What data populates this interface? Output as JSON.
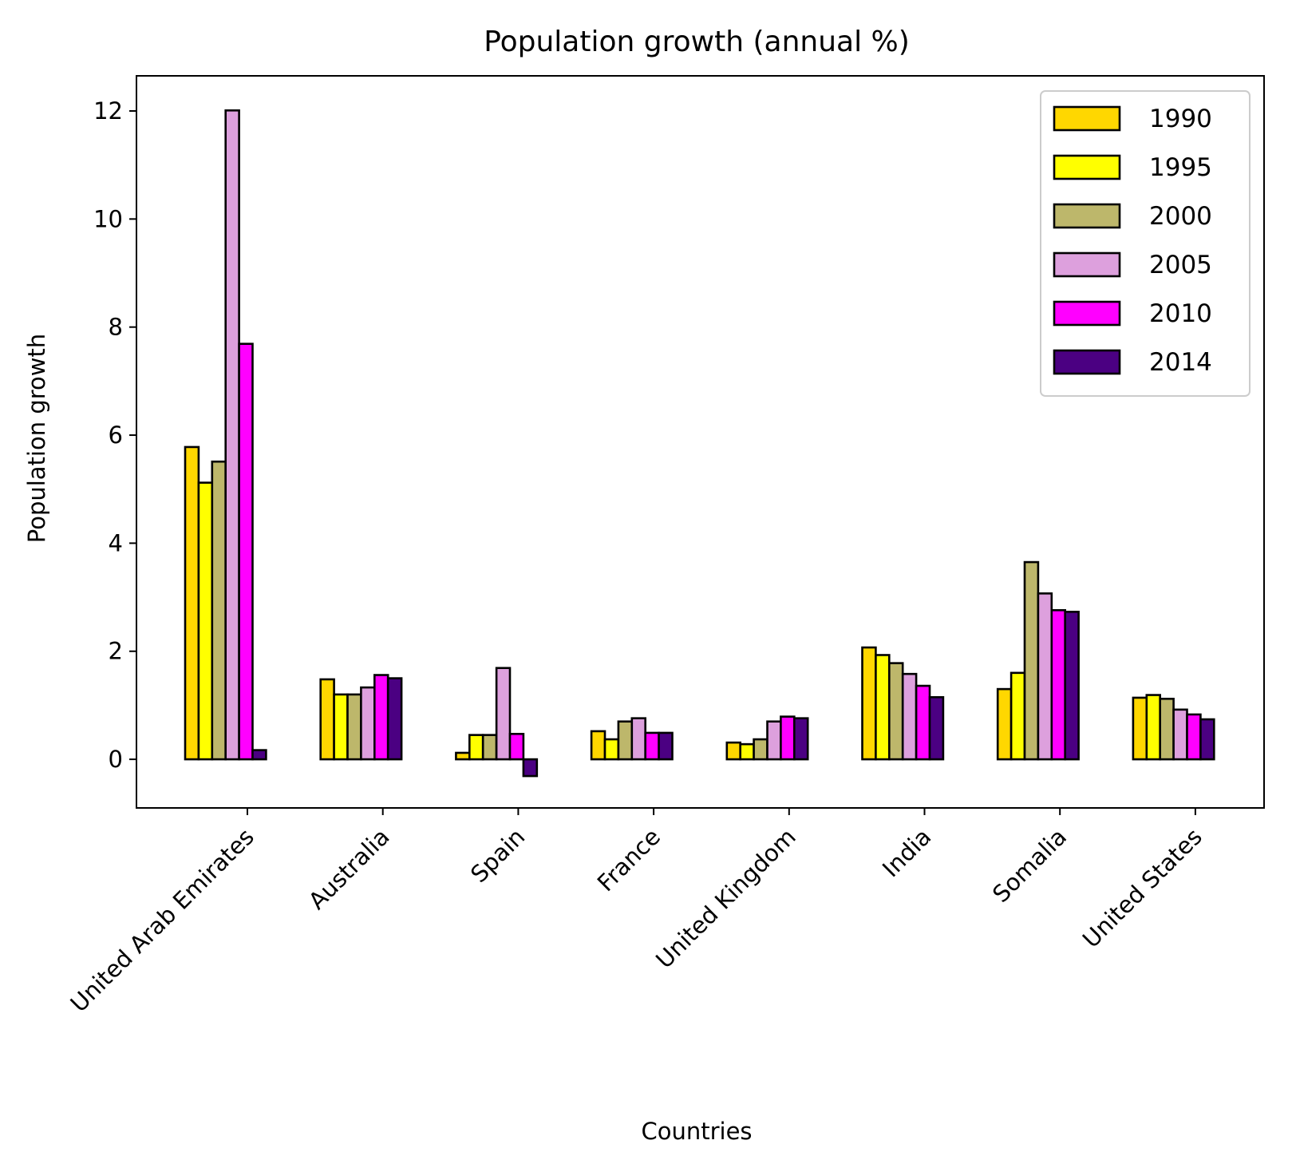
{
  "chart_data": {
    "type": "bar",
    "title": "Population growth (annual %)",
    "xlabel": "Countries",
    "ylabel": "Population growth",
    "categories": [
      "United Arab Emirates",
      "Australia",
      "Spain",
      "France",
      "United Kingdom",
      "India",
      "Somalia",
      "United States"
    ],
    "series": [
      {
        "name": "1990",
        "color": "#FFD700",
        "values": [
          5.78,
          1.48,
          0.12,
          0.52,
          0.31,
          2.07,
          1.3,
          1.14
        ]
      },
      {
        "name": "1995",
        "color": "#FFFF00",
        "values": [
          5.12,
          1.2,
          0.45,
          0.37,
          0.28,
          1.93,
          1.6,
          1.19
        ]
      },
      {
        "name": "2000",
        "color": "#BDB76B",
        "values": [
          5.51,
          1.2,
          0.45,
          0.7,
          0.37,
          1.78,
          3.65,
          1.12
        ]
      },
      {
        "name": "2005",
        "color": "#DDA0DD",
        "values": [
          12.01,
          1.33,
          1.69,
          0.76,
          0.7,
          1.58,
          3.07,
          0.92
        ]
      },
      {
        "name": "2010",
        "color": "#FF00FF",
        "values": [
          7.69,
          1.56,
          0.47,
          0.49,
          0.79,
          1.36,
          2.76,
          0.83
        ]
      },
      {
        "name": "2014",
        "color": "#4B0082",
        "values": [
          0.17,
          1.5,
          -0.31,
          0.49,
          0.76,
          1.15,
          2.73,
          0.74
        ]
      }
    ],
    "ylim": [
      -0.9,
      12.65
    ],
    "yticks": [
      0,
      2,
      4,
      6,
      8,
      10,
      12
    ],
    "legend": "top-right",
    "grid": false
  }
}
